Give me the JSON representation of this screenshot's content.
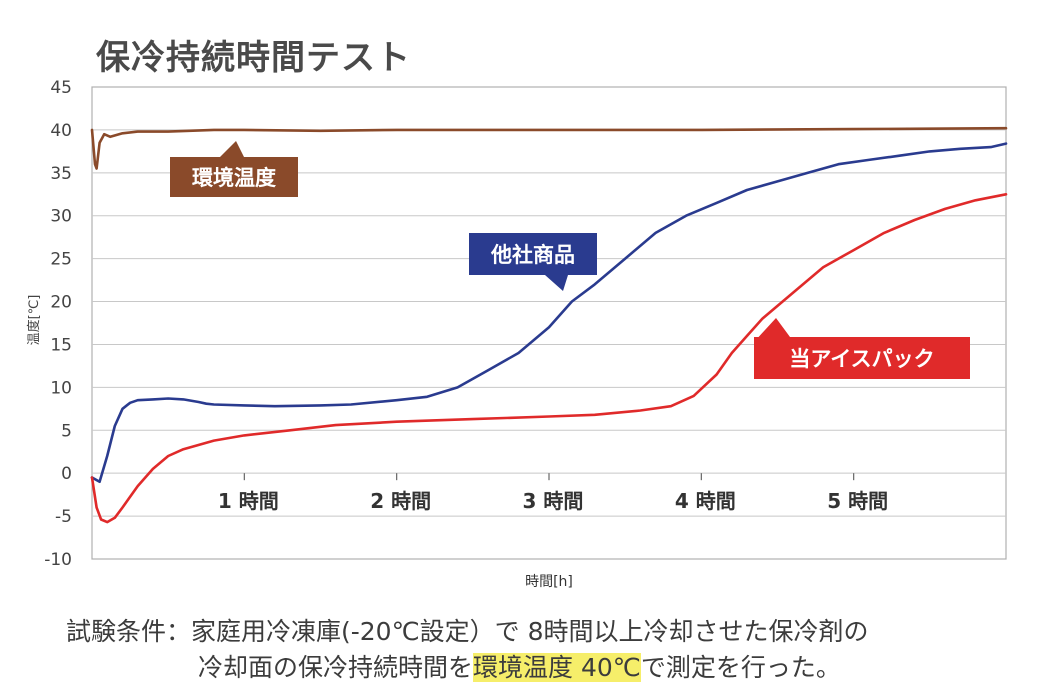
{
  "title": "保冷持続時間テスト",
  "caption": {
    "line1": "試験条件：家庭用冷凍庫(-20℃設定）で 8時間以上冷却させた保冷剤の",
    "line2_prefix": "冷却面の保冷持続時間を",
    "line2_highlight": "環境温度 40℃",
    "line2_suffix": "で測定を行った。"
  },
  "colors": {
    "environment": "#8a4a2a",
    "competitor": "#2a3b8f",
    "ours": "#e02a2a",
    "grid": "#c8c8c8",
    "highlight": "#f6ee6a"
  },
  "chart_data": {
    "type": "line",
    "title": "保冷持続時間テスト",
    "xlabel": "時間[h]",
    "ylabel": "温度[℃]",
    "xlim": [
      0,
      6
    ],
    "ylim": [
      -10,
      45
    ],
    "yticks": [
      -10,
      -5,
      0,
      5,
      10,
      15,
      20,
      25,
      30,
      35,
      40,
      45
    ],
    "xticks": [
      1,
      2,
      3,
      4,
      5
    ],
    "xtick_labels": [
      "1 時間",
      "2 時間",
      "3 時間",
      "4 時間",
      "5 時間"
    ],
    "grid": true,
    "series": [
      {
        "name": "環境温度",
        "color": "#8a4a2a",
        "x": [
          0,
          0.02,
          0.03,
          0.05,
          0.08,
          0.12,
          0.2,
          0.3,
          0.5,
          0.8,
          1.0,
          1.5,
          2.0,
          3.0,
          4.0,
          5.0,
          6.0
        ],
        "y": [
          40,
          36,
          35.5,
          38.5,
          39.5,
          39.2,
          39.6,
          39.8,
          39.8,
          40,
          40,
          39.9,
          40,
          40,
          40,
          40.1,
          40.2
        ]
      },
      {
        "name": "他社商品",
        "color": "#2a3b8f",
        "x": [
          0,
          0.05,
          0.1,
          0.15,
          0.2,
          0.25,
          0.3,
          0.4,
          0.5,
          0.6,
          0.7,
          0.75,
          0.8,
          1.0,
          1.2,
          1.5,
          1.7,
          2.0,
          2.2,
          2.4,
          2.6,
          2.8,
          3.0,
          3.15,
          3.3,
          3.5,
          3.7,
          3.9,
          4.1,
          4.3,
          4.5,
          4.7,
          4.9,
          5.1,
          5.3,
          5.5,
          5.7,
          5.9,
          6.0
        ],
        "y": [
          -0.5,
          -1,
          2,
          5.5,
          7.5,
          8.2,
          8.5,
          8.6,
          8.7,
          8.6,
          8.3,
          8.1,
          8.0,
          7.9,
          7.8,
          7.9,
          8.0,
          8.5,
          8.9,
          10,
          12,
          14,
          17,
          20,
          22,
          25,
          28,
          30,
          31.5,
          33,
          34,
          35,
          36,
          36.5,
          37,
          37.5,
          37.8,
          38,
          38.4
        ]
      },
      {
        "name": "当アイスパック",
        "color": "#e02a2a",
        "x": [
          0,
          0.03,
          0.06,
          0.1,
          0.15,
          0.2,
          0.3,
          0.4,
          0.5,
          0.6,
          0.8,
          1.0,
          1.3,
          1.6,
          2.0,
          2.5,
          3.0,
          3.3,
          3.6,
          3.8,
          3.95,
          4.1,
          4.2,
          4.3,
          4.4,
          4.6,
          4.8,
          5.0,
          5.2,
          5.4,
          5.6,
          5.8,
          6.0
        ],
        "y": [
          -0.5,
          -4,
          -5.4,
          -5.7,
          -5.2,
          -4.0,
          -1.5,
          0.5,
          2,
          2.8,
          3.8,
          4.4,
          5,
          5.6,
          6,
          6.3,
          6.6,
          6.8,
          7.3,
          7.8,
          9,
          11.5,
          14,
          16,
          18,
          21,
          24,
          26,
          28,
          29.5,
          30.8,
          31.8,
          32.5
        ]
      }
    ],
    "annotations": [
      {
        "text": "環境温度",
        "series": "環境温度"
      },
      {
        "text": "他社商品",
        "series": "他社商品"
      },
      {
        "text": "当アイスパック",
        "series": "当アイスパック"
      }
    ]
  }
}
